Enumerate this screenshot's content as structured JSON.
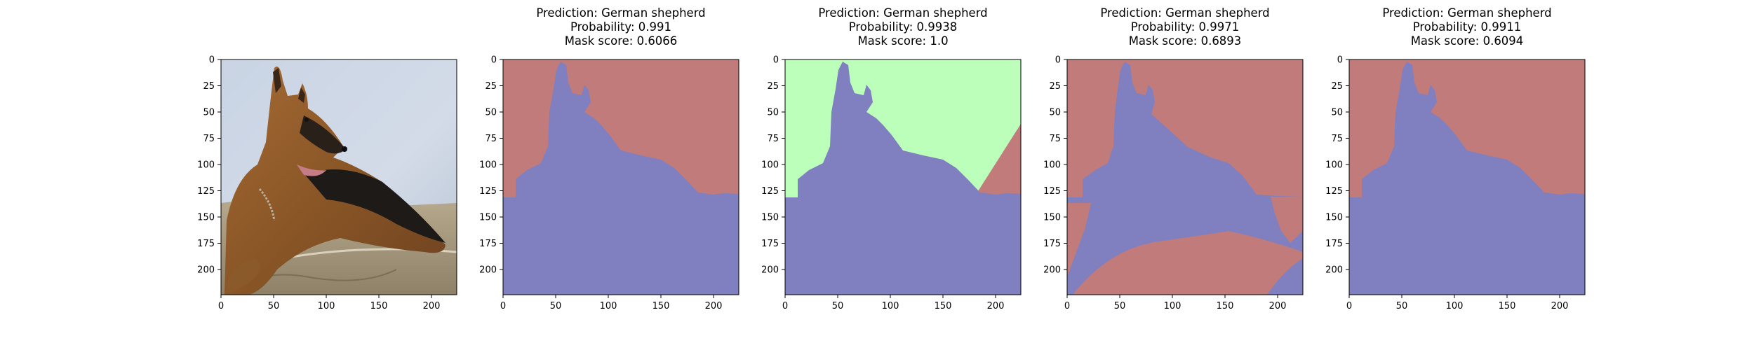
{
  "figure": {
    "panels": [
      {
        "id": "input",
        "kind": "photo",
        "title_lines": [],
        "subject": "german-shepherd-photo",
        "x_ticks": [
          0,
          50,
          100,
          150,
          200
        ],
        "y_ticks": [
          0,
          25,
          50,
          75,
          100,
          125,
          150,
          175,
          200
        ],
        "xlim": [
          0,
          224
        ],
        "ylim": [
          0,
          224
        ]
      },
      {
        "id": "mask1",
        "kind": "mask",
        "title_lines": [
          "Prediction: German shepherd",
          "Probability: 0.991",
          "Mask score: 0.6066"
        ],
        "x_ticks": [
          0,
          50,
          100,
          150,
          200
        ],
        "y_ticks": [
          0,
          25,
          50,
          75,
          100,
          125,
          150,
          175,
          200
        ],
        "xlim": [
          0,
          224
        ],
        "ylim": [
          0,
          224
        ],
        "background_color": "#c17b7b",
        "region_color": "#807fbf"
      },
      {
        "id": "mask2",
        "kind": "mask",
        "title_lines": [
          "Prediction: German shepherd",
          "Probability: 0.9938",
          "Mask score: 1.0"
        ],
        "x_ticks": [
          0,
          50,
          100,
          150,
          200
        ],
        "y_ticks": [
          0,
          25,
          50,
          75,
          100,
          125,
          150,
          175,
          200
        ],
        "xlim": [
          0,
          224
        ],
        "ylim": [
          0,
          224
        ],
        "background_color": "#bbffbb",
        "region_color": "#807fbf",
        "corner_color": "#c17b7b"
      },
      {
        "id": "mask3",
        "kind": "mask",
        "title_lines": [
          "Prediction: German shepherd",
          "Probability: 0.9971",
          "Mask score: 0.6893"
        ],
        "x_ticks": [
          0,
          50,
          100,
          150,
          200
        ],
        "y_ticks": [
          0,
          25,
          50,
          75,
          100,
          125,
          150,
          175,
          200
        ],
        "xlim": [
          0,
          224
        ],
        "ylim": [
          0,
          224
        ],
        "background_color": "#c17b7b",
        "region_color": "#807fbf"
      },
      {
        "id": "mask4",
        "kind": "mask",
        "title_lines": [
          "Prediction: German shepherd",
          "Probability: 0.9911",
          "Mask score: 0.6094"
        ],
        "x_ticks": [
          0,
          50,
          100,
          150,
          200
        ],
        "y_ticks": [
          0,
          25,
          50,
          75,
          100,
          125,
          150,
          175,
          200
        ],
        "xlim": [
          0,
          224
        ],
        "ylim": [
          0,
          224
        ],
        "background_color": "#c17b7b",
        "region_color": "#807fbf"
      }
    ]
  }
}
